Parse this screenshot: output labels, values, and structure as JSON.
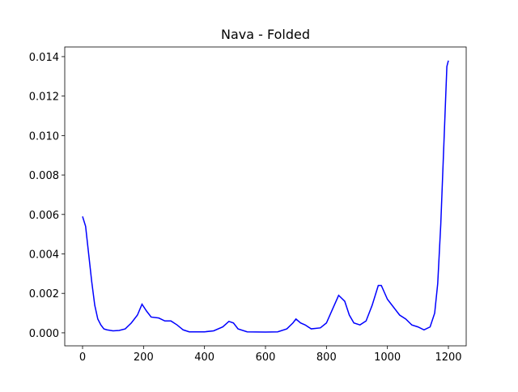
{
  "chart_data": {
    "type": "line",
    "title": "Nava - Folded",
    "x": [
      0,
      10,
      20,
      30,
      40,
      50,
      60,
      70,
      80,
      100,
      120,
      140,
      160,
      180,
      195,
      210,
      225,
      250,
      270,
      290,
      310,
      330,
      350,
      400,
      430,
      460,
      480,
      495,
      510,
      540,
      600,
      640,
      670,
      690,
      700,
      715,
      730,
      750,
      780,
      800,
      820,
      840,
      860,
      875,
      890,
      910,
      930,
      950,
      970,
      980,
      1000,
      1020,
      1040,
      1060,
      1080,
      1100,
      1120,
      1140,
      1155,
      1165,
      1175,
      1185,
      1195,
      1200
    ],
    "series": [
      {
        "color": "#0000ff",
        "values": [
          0.0059,
          0.0054,
          0.004,
          0.0026,
          0.0014,
          0.0007,
          0.0004,
          0.0002,
          0.00015,
          0.0001,
          0.00012,
          0.0002,
          0.0005,
          0.0009,
          0.00145,
          0.0011,
          0.0008,
          0.00075,
          0.0006,
          0.0006,
          0.0004,
          0.00015,
          5e-05,
          5e-05,
          0.0001,
          0.0003,
          0.00058,
          0.0005,
          0.0002,
          5e-05,
          4e-05,
          5e-05,
          0.0002,
          0.0005,
          0.0007,
          0.0005,
          0.0004,
          0.0002,
          0.00025,
          0.0005,
          0.0012,
          0.0019,
          0.0016,
          0.0009,
          0.0005,
          0.0004,
          0.0006,
          0.0014,
          0.0024,
          0.0024,
          0.0017,
          0.0013,
          0.0009,
          0.0007,
          0.0004,
          0.0003,
          0.00015,
          0.0003,
          0.001,
          0.0025,
          0.0055,
          0.0095,
          0.0135,
          0.0138
        ]
      }
    ],
    "xlim": [
      -58.4,
      1258.4
    ],
    "xticks": [
      0,
      200,
      400,
      600,
      800,
      1000,
      1200
    ],
    "ylim": [
      -0.00066,
      0.01449
    ],
    "yticks": [
      {
        "value": 0,
        "label": "0.000"
      },
      {
        "value": 0.002,
        "label": "0.002"
      },
      {
        "value": 0.004,
        "label": "0.004"
      },
      {
        "value": 0.006,
        "label": "0.006"
      },
      {
        "value": 0.008,
        "label": "0.008"
      },
      {
        "value": 0.01,
        "label": "0.010"
      },
      {
        "value": 0.012,
        "label": "0.012"
      },
      {
        "value": 0.014,
        "label": "0.014"
      }
    ]
  }
}
